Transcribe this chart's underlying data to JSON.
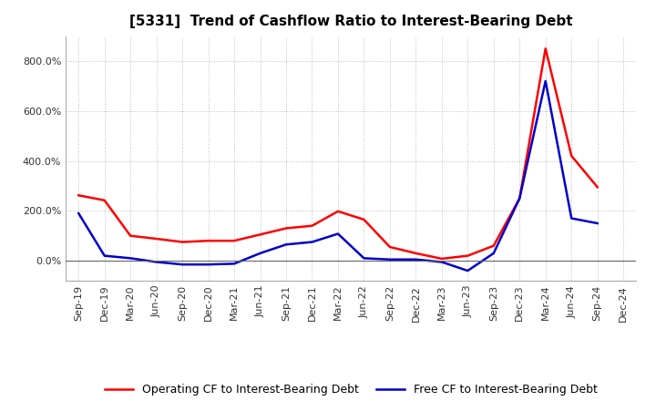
{
  "title": "[5331]  Trend of Cashflow Ratio to Interest-Bearing Debt",
  "x_labels": [
    "Sep-19",
    "Dec-19",
    "Mar-20",
    "Jun-20",
    "Sep-20",
    "Dec-20",
    "Mar-21",
    "Jun-21",
    "Sep-21",
    "Dec-21",
    "Mar-22",
    "Jun-22",
    "Sep-22",
    "Dec-22",
    "Mar-23",
    "Jun-23",
    "Sep-23",
    "Dec-23",
    "Mar-24",
    "Jun-24",
    "Sep-24",
    "Dec-24"
  ],
  "operating_cf": [
    262,
    242,
    100,
    88,
    75,
    80,
    80,
    105,
    130,
    140,
    198,
    165,
    55,
    30,
    8,
    20,
    60,
    250,
    850,
    420,
    295,
    null
  ],
  "free_cf": [
    190,
    20,
    10,
    -5,
    -15,
    -15,
    -12,
    30,
    65,
    75,
    108,
    10,
    5,
    5,
    -5,
    -40,
    30,
    250,
    720,
    170,
    150,
    null
  ],
  "operating_color": "#ff0000",
  "free_color": "#0000cd",
  "background_color": "#ffffff",
  "grid_color": "#bbbbbb",
  "ylim": [
    -80,
    900
  ],
  "yticks": [
    0,
    200,
    400,
    600,
    800
  ],
  "legend_op": "Operating CF to Interest-Bearing Debt",
  "legend_free": "Free CF to Interest-Bearing Debt",
  "title_fontsize": 11,
  "tick_fontsize": 8,
  "legend_fontsize": 9
}
